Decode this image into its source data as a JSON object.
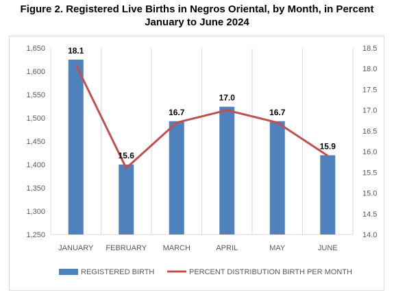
{
  "title": {
    "line1": "Figure 2.  Registered Live Births in Negros Oriental, by Month, in Percent",
    "line2": "January to June 2024"
  },
  "chart_data": {
    "type": "bar",
    "categories": [
      "JANUARY",
      "FEBRUARY",
      "MARCH",
      "APRIL",
      "MAY",
      "JUNE"
    ],
    "series": [
      {
        "name": "REGISTERED BIRTH",
        "type": "bar",
        "axis": "left",
        "color": "#4f81bd",
        "values": [
          1625,
          1400,
          1493,
          1524,
          1493,
          1420
        ]
      },
      {
        "name": "PERCENT DISTRIBUTION BIRTH PER MONTH",
        "type": "line",
        "axis": "right",
        "color": "#c0504d",
        "values": [
          18.1,
          15.6,
          16.7,
          17.0,
          16.7,
          15.9
        ],
        "labels": [
          "18.1",
          "15.6",
          "16.7",
          "17.0",
          "16.7",
          "15.9"
        ]
      }
    ],
    "y_left": {
      "ylim": [
        1250,
        1650
      ],
      "ticks": [
        "1,250",
        "1,300",
        "1,350",
        "1,400",
        "1,450",
        "1,500",
        "1,550",
        "1,600",
        "1,650"
      ]
    },
    "y_right": {
      "ylim": [
        14.0,
        18.5
      ],
      "ticks": [
        "14.0",
        "14.5",
        "15.0",
        "15.5",
        "16.0",
        "16.5",
        "17.0",
        "17.5",
        "18.0",
        "18.5"
      ]
    },
    "grid": "vertical category separators",
    "legend": "bottom"
  }
}
